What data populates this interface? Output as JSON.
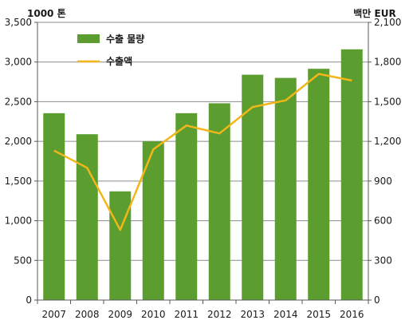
{
  "chart_data": {
    "type": "bar",
    "categories": [
      "2007",
      "2008",
      "2009",
      "2010",
      "2011",
      "2012",
      "2013",
      "2014",
      "2015",
      "2016"
    ],
    "series": [
      {
        "name": "수출 물량",
        "kind": "bar",
        "axis": "left",
        "color": "#5b9e2f",
        "values": [
          2355,
          2090,
          1370,
          2000,
          2355,
          2480,
          2840,
          2800,
          2915,
          3160
        ]
      },
      {
        "name": "수출액",
        "kind": "line",
        "axis": "right",
        "color": "#f2b619",
        "values": [
          1130,
          1000,
          530,
          1140,
          1320,
          1260,
          1460,
          1510,
          1710,
          1660
        ]
      }
    ],
    "left_axis": {
      "unit_label": "1000 톤",
      "ylim": [
        0,
        3500
      ],
      "ticks": [
        "0",
        "500",
        "1,000",
        "1,500",
        "2,000",
        "2,500",
        "3,000",
        "3,500"
      ]
    },
    "right_axis": {
      "unit_label": "백만 EUR",
      "ylim": [
        0,
        2100
      ],
      "ticks": [
        "0",
        "300",
        "600",
        "900",
        "1,200",
        "1,500",
        "1,800",
        "2,100"
      ]
    },
    "grid": true,
    "legend_position": "top-left"
  }
}
